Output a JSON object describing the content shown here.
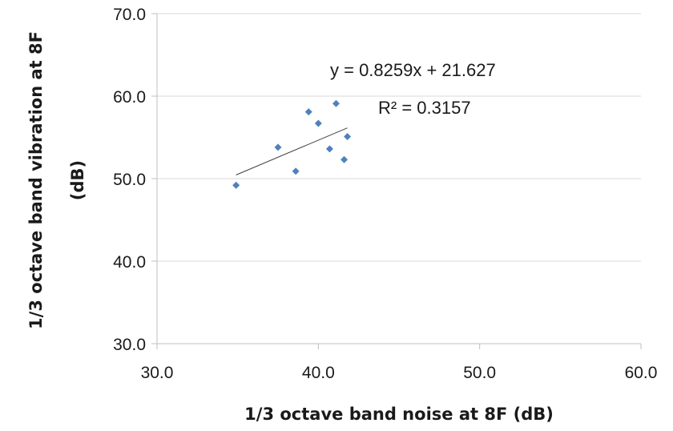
{
  "chart_data": {
    "type": "scatter",
    "xlabel": "1/3 octave band noise at 8F (dB)",
    "ylabel_line1": "1/3 octave band vibration at 8F",
    "ylabel_line2": "(dB)",
    "xlim": [
      30.0,
      60.0
    ],
    "ylim": [
      30.0,
      70.0
    ],
    "x_ticks": [
      "30.0",
      "40.0",
      "50.0",
      "60.0"
    ],
    "y_ticks": [
      "30.0",
      "40.0",
      "50.0",
      "60.0",
      "70.0"
    ],
    "grid": "horizontal",
    "marker_color": "#4f81bd",
    "series": [
      {
        "points": [
          {
            "x": 34.9,
            "y": 49.2
          },
          {
            "x": 37.5,
            "y": 53.8
          },
          {
            "x": 38.6,
            "y": 50.9
          },
          {
            "x": 39.4,
            "y": 58.1
          },
          {
            "x": 40.0,
            "y": 56.7
          },
          {
            "x": 40.7,
            "y": 53.6
          },
          {
            "x": 41.1,
            "y": 59.1
          },
          {
            "x": 41.6,
            "y": 52.3
          },
          {
            "x": 41.8,
            "y": 55.1
          }
        ]
      }
    ],
    "trendline": {
      "type": "linear",
      "slope": 0.8259,
      "intercept": 21.627,
      "x_range": [
        34.9,
        41.8
      ],
      "equation": "y = 0.8259x + 21.627",
      "r_squared": "R² = 0.3157"
    }
  }
}
